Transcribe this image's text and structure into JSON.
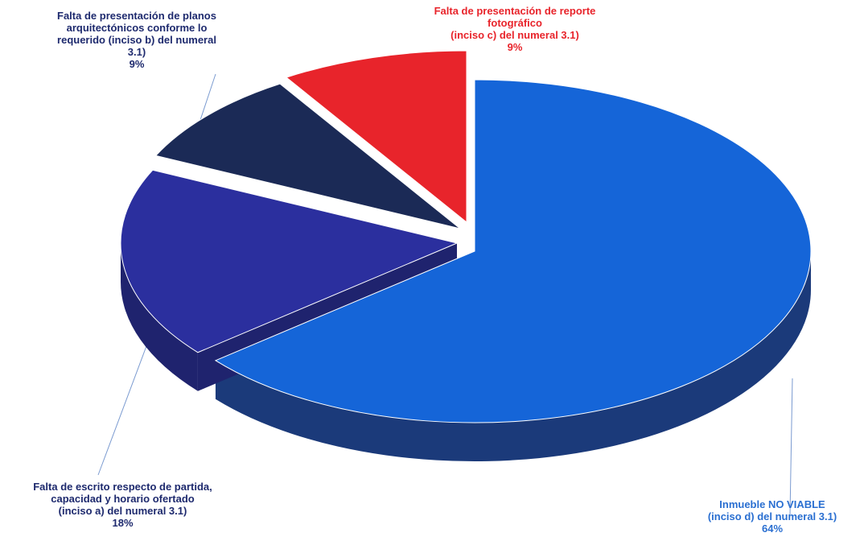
{
  "chart_data": {
    "type": "pie",
    "title": "",
    "slices": [
      {
        "label_lines": [
          "Inmueble NO VIABLE",
          "(inciso d) del numeral 3.1)"
        ],
        "pct_text": "64%",
        "value": 64,
        "color": "#1565d8",
        "side_color": "#1b3a7a"
      },
      {
        "label_lines": [
          "Falta de escrito respecto de partida,",
          "capacidad y horario ofertado",
          "(inciso a) del numeral 3.1)"
        ],
        "pct_text": "18%",
        "value": 18,
        "color": "#2b2f9e",
        "side_color": "#1f236e"
      },
      {
        "label_lines": [
          "Falta de presentación de planos",
          "arquitectónicos conforme lo",
          "requerido (inciso b) del numeral",
          "3.1)"
        ],
        "pct_text": "9%",
        "value": 9,
        "color": "#1b2a56",
        "side_color": "#121c3a"
      },
      {
        "label_lines": [
          "Falta de presentación de reporte",
          "fotográfico",
          "(inciso c) del numeral 3.1)"
        ],
        "pct_text": "9%",
        "value": 9,
        "color": "#e8242b",
        "side_color": "#a5161b"
      }
    ],
    "legend": "none",
    "label_colors": {
      "blue_slice": "#2a6fd1",
      "red_slice": "#e8242b",
      "dark_slices": "#1e2a6e"
    }
  }
}
